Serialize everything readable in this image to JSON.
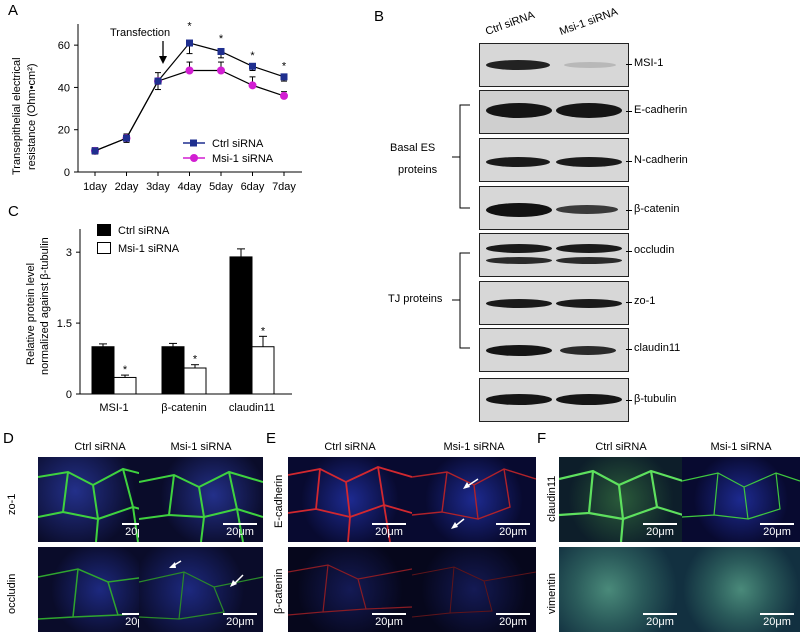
{
  "panels": {
    "a": "A",
    "b": "B",
    "c": "C",
    "d": "D",
    "e": "E",
    "f": "F"
  },
  "panel_a": {
    "ylabel_line1": "Transepithelial electrical",
    "ylabel_line2": "resistance (Ohm•cm²)",
    "annotation": "Transfection",
    "star": "*",
    "legend": [
      "Ctrl siRNA",
      "Msi-1 siRNA"
    ]
  },
  "panel_b": {
    "columns": [
      "Ctrl siRNA",
      "Msi-1 siRNA"
    ],
    "bands": [
      "MSI-1",
      "E-cadherin",
      "N-cadherin",
      "β-catenin",
      "occludin",
      "zo-1",
      "claudin11",
      "β-tubulin"
    ],
    "group_basal_line1": "Basal ES",
    "group_basal_line2": "proteins",
    "group_tj": "TJ proteins"
  },
  "panel_c": {
    "ylabel_line1": "Relative protein level",
    "ylabel_line2": "normalized against β-tubulin",
    "legend": [
      "Ctrl siRNA",
      "Msi-1 siRNA"
    ],
    "star": "*"
  },
  "micro": {
    "ctrl": "Ctrl siRNA",
    "msi": "Msi-1 siRNA",
    "scale": "20μm",
    "d_rows": [
      "zo-1",
      "occludin"
    ],
    "e_rows": [
      "E-cadherin",
      "β-catenin"
    ],
    "f_rows": [
      "claudin11",
      "vimentin"
    ]
  },
  "colors": {
    "ctrl": "#1f2f8f",
    "msi": "#d21ed2",
    "green_stain": "#3fd23f",
    "red_stain": "#d2282f",
    "nucleus": "#1a2aa0"
  },
  "chart_data": [
    {
      "type": "line",
      "x": [
        "1day",
        "2day",
        "3day",
        "4day",
        "5day",
        "6day",
        "7day"
      ],
      "series": [
        {
          "name": "Ctrl siRNA",
          "values": [
            10,
            16,
            43,
            61,
            57,
            50,
            45
          ],
          "errors": [
            1.5,
            2,
            4,
            5,
            3,
            2,
            2
          ]
        },
        {
          "name": "Msi-1 siRNA",
          "values": [
            10,
            16,
            43,
            48,
            48,
            41,
            36
          ],
          "errors": [
            1.5,
            2,
            4,
            4,
            4,
            4,
            2
          ]
        }
      ],
      "ylim": [
        0,
        70
      ],
      "yticks": [
        "0",
        "20",
        "40",
        "60"
      ],
      "significant": [
        "4day",
        "5day",
        "6day",
        "7day"
      ]
    },
    {
      "type": "bar",
      "categories": [
        "MSI-1",
        "β-catenin",
        "claudin11"
      ],
      "series": [
        {
          "name": "Ctrl siRNA",
          "values": [
            1.0,
            1.0,
            2.9
          ],
          "errors": [
            0.06,
            0.07,
            0.17
          ]
        },
        {
          "name": "Msi-1 siRNA",
          "values": [
            0.35,
            0.55,
            1.0
          ],
          "errors": [
            0.05,
            0.07,
            0.22
          ]
        }
      ],
      "ylim": [
        0,
        3.3
      ],
      "yticks": [
        "0",
        "1.5",
        "3"
      ],
      "significant": [
        "MSI-1",
        "β-catenin",
        "claudin11"
      ]
    }
  ]
}
